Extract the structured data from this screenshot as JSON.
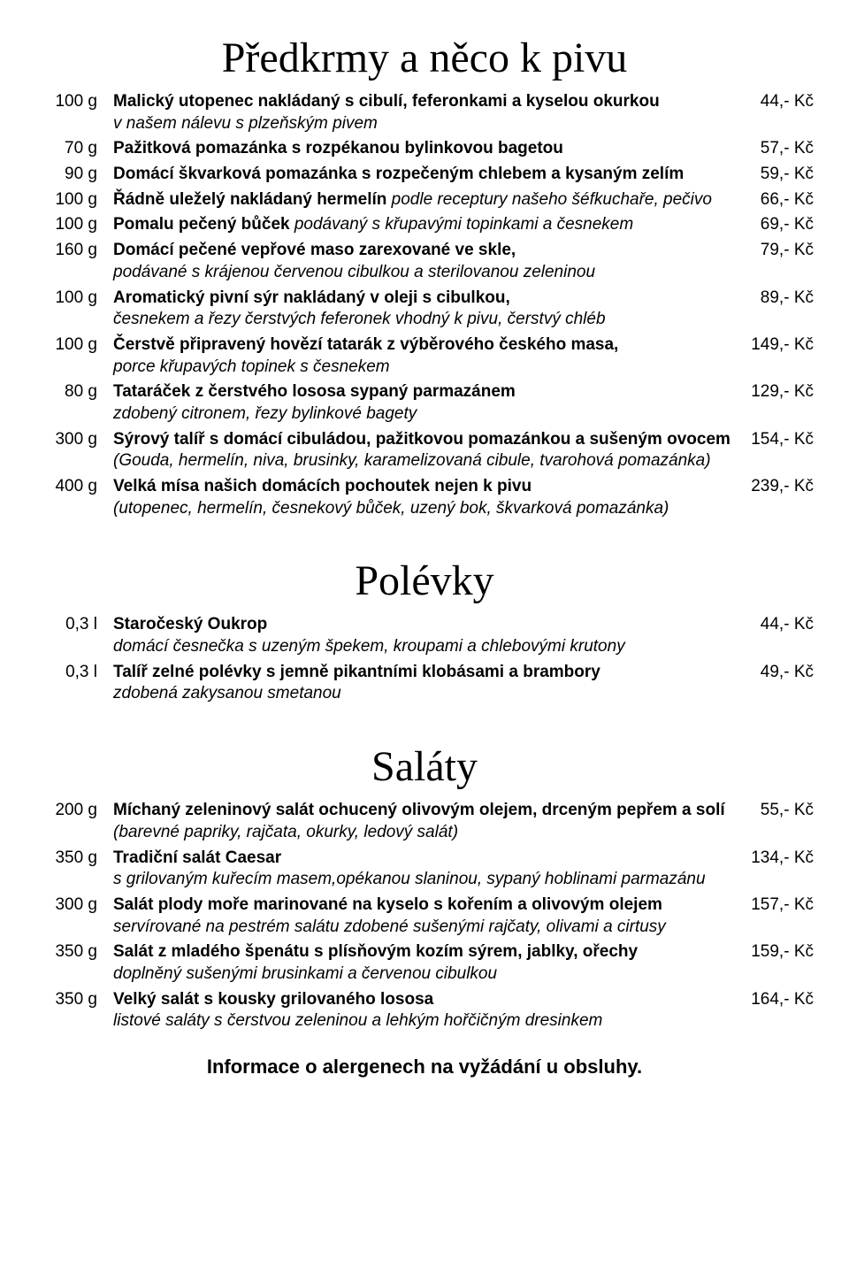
{
  "sections": [
    {
      "heading": "Předkrmy a něco k pivu",
      "items": [
        {
          "qty": "100 g",
          "title": "Malický utopenec nakládaný s cibulí, feferonkami a kyselou okurkou",
          "desc": "v našem nálevu s plzeňským pivem",
          "price": "44,- Kč"
        },
        {
          "qty": "70 g",
          "title": "Pažitková pomazánka s rozpékanou bylinkovou bagetou",
          "desc": "",
          "price": "57,- Kč"
        },
        {
          "qty": "90 g",
          "title": "Domácí škvarková pomazánka s rozpečeným chlebem a kysaným zelím",
          "desc": "",
          "price": "59,- Kč"
        },
        {
          "qty": "100 g",
          "title": "Řádně uleželý nakládaný hermelín",
          "title_ext": " podle receptury našeho šéfkuchaře, pečivo",
          "desc": "",
          "price": "66,- Kč"
        },
        {
          "qty": "100 g",
          "title": "Pomalu pečený bůček",
          "title_ext": " podávaný s křupavými topinkami a česnekem",
          "desc": "",
          "price": "69,- Kč"
        },
        {
          "qty": "160 g",
          "title": "Domácí pečené vepřové maso zarexované ve skle,",
          "desc": "podávané s krájenou červenou cibulkou a sterilovanou zeleninou",
          "price": "79,- Kč"
        },
        {
          "qty": "100 g",
          "title": "Aromatický pivní sýr nakládaný v oleji s cibulkou,",
          "desc": "česnekem a řezy čerstvých feferonek vhodný k pivu, čerstvý chléb",
          "price": "89,- Kč"
        },
        {
          "qty": "100 g",
          "title": "Čerstvě připravený hovězí tatarák z výběrového českého masa,",
          "desc": "porce křupavých topinek s česnekem",
          "price": "149,- Kč"
        },
        {
          "qty": "80 g",
          "title": "Tataráček z čerstvého lososa sypaný parmazánem",
          "desc": "zdobený citronem, řezy bylinkové bagety",
          "price": "129,- Kč"
        },
        {
          "qty": "300 g",
          "title": "Sýrový talíř s domácí cibuládou, pažitkovou pomazánkou a sušeným ovocem",
          "desc": "(Gouda, hermelín, niva, brusinky, karamelizovaná cibule, tvarohová pomazánka)",
          "price": "154,- Kč"
        },
        {
          "qty": "400 g",
          "title": "Velká mísa našich domácích pochoutek nejen k pivu",
          "desc": "(utopenec, hermelín, česnekový bůček, uzený bok, škvarková pomazánka)",
          "price": "239,- Kč"
        }
      ]
    },
    {
      "heading": "Polévky",
      "items": [
        {
          "qty": "0,3 l",
          "title": "Staročeský Oukrop",
          "desc": "domácí česnečka s uzeným špekem, kroupami a chlebovými krutony",
          "price": "44,- Kč"
        },
        {
          "qty": "0,3 l",
          "title": "Talíř zelné polévky s jemně pikantními klobásami a brambory",
          "desc": "zdobená zakysanou smetanou",
          "price": "49,- Kč"
        }
      ]
    },
    {
      "heading": "Saláty",
      "items": [
        {
          "qty": "200 g",
          "title": "Míchaný zeleninový salát ochucený olivovým olejem, drceným pepřem a solí",
          "desc": "(barevné papriky, rajčata, okurky, ledový salát)",
          "price": "55,- Kč"
        },
        {
          "qty": "350 g",
          "title": "Tradiční salát Caesar",
          "desc": "s grilovaným kuřecím masem,opékanou slaninou, sypaný hoblinami parmazánu",
          "price": "134,- Kč"
        },
        {
          "qty": "300 g",
          "title": "Salát plody moře marinované na kyselo s kořením a olivovým olejem",
          "desc": "servírované na pestrém salátu zdobené sušenými rajčaty, olivami a cirtusy",
          "price": "157,- Kč"
        },
        {
          "qty": "350 g",
          "title": "Salát z mladého špenátu s plísňovým kozím sýrem, jablky, ořechy",
          "desc": "doplněný sušenými brusinkami a červenou cibulkou",
          "price": "159,- Kč"
        },
        {
          "qty": "350 g",
          "title": "Velký salát s kousky grilovaného lososa",
          "desc": "listové saláty s čerstvou zeleninou a lehkým hořčičným dresinkem",
          "price": "164,- Kč"
        }
      ]
    }
  ],
  "footer": "Informace o alergenech na vyžádání u obsluhy."
}
